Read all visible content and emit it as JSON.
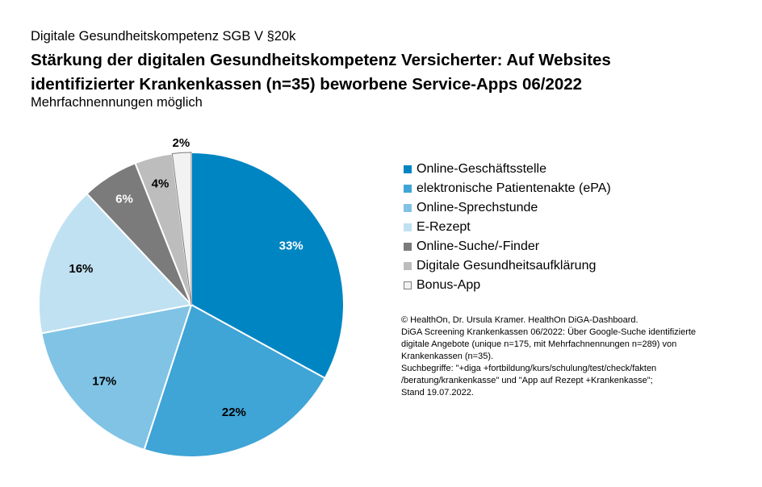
{
  "header": {
    "supertitle": "Digitale Gesundheitskompetenz SGB V §20k",
    "title_line1": "Stärkung der digitalen Gesundheitskompetenz Versicherter: Auf Websites",
    "title_line2": "identifizierter Krankenkassen (n=35) beworbene Service-Apps 06/2022",
    "subtitle": "Mehrfachnennungen möglich"
  },
  "chart_data": {
    "type": "pie",
    "title": "Stärkung der digitalen Gesundheitskompetenz Versicherter: Auf Websites identifizierter Krankenkassen (n=35) beworbene Service-Apps 06/2022",
    "start_angle_deg": 0,
    "direction": "clockwise",
    "legend_position": "right",
    "slices": [
      {
        "label": "Online-Geschäftsstelle",
        "value": 33,
        "display": "33%",
        "color": "#0085C3",
        "label_color": "#ffffff"
      },
      {
        "label": "elektronische Patientenakte (ePA)",
        "value": 22,
        "display": "22%",
        "color": "#3FA4D6",
        "label_color": "#000000"
      },
      {
        "label": "Online-Sprechstunde",
        "value": 17,
        "display": "17%",
        "color": "#80C3E5",
        "label_color": "#000000"
      },
      {
        "label": "E-Rezept",
        "value": 16,
        "display": "16%",
        "color": "#C0E1F2",
        "label_color": "#000000"
      },
      {
        "label": "Online-Suche/-Finder",
        "value": 6,
        "display": "6%",
        "color": "#7B7B7B",
        "label_color": "#ffffff"
      },
      {
        "label": "Digitale Gesundheitsaufklärung",
        "value": 4,
        "display": "4%",
        "color": "#BDBDBD",
        "label_color": "#000000"
      },
      {
        "label": "Bonus-App",
        "value": 2,
        "display": "2%",
        "color": "#F2F2F2",
        "label_color": "#000000"
      }
    ]
  },
  "source": {
    "lines": [
      "© HealthOn, Dr. Ursula Kramer. HealthOn DiGA-Dashboard.",
      "DiGA Screening Krankenkassen 06/2022: Über Google-Suche identifizierte",
      "digitale Angebote (unique n=175, mit Mehrfachnennungen n=289) von",
      "Krankenkassen (n=35).",
      "Suchbegriffe: \"+diga +fortbildung/kurs/schulung/test/check/fakten",
      "/beratung/krankenkasse\" und \"App auf Rezept +Krankenkasse\";",
      "Stand 19.07.2022."
    ]
  }
}
